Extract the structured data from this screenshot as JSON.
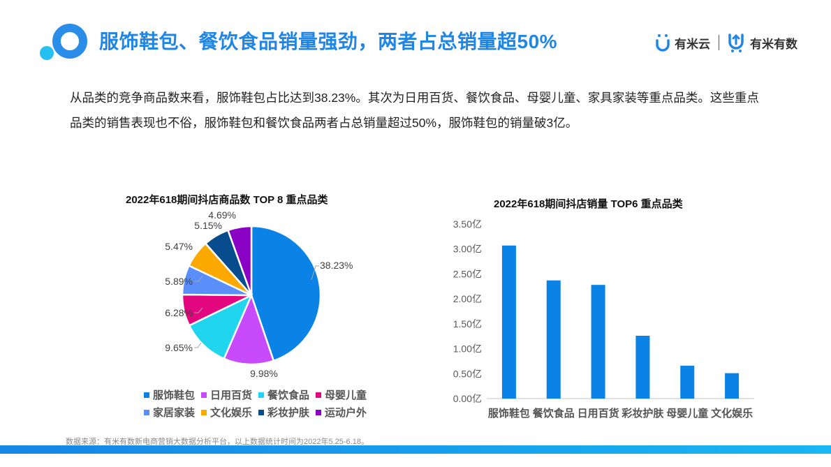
{
  "header": {
    "title": "服饰鞋包、餐饮食品销量强劲，两者占总销量超50%",
    "brand": {
      "logo1_text": "有米云",
      "logo2_text": "有米有数"
    },
    "accent_color": "#1f86e6"
  },
  "intro": {
    "text": "从品类的竞争商品数来看，服饰鞋包占比达到38.23%。其次为日用百货、餐饮食品、母婴儿童、家具家装等重点品类。这些重点品类的销售表现也不俗，服饰鞋包和餐饮食品两者占总销量超过50%，服饰鞋包的销量破3亿。"
  },
  "chart_data": [
    {
      "type": "pie",
      "title": "2022年618期间抖店商品数 TOP 8 重点品类",
      "categories": [
        "服饰鞋包",
        "日用百货",
        "餐饮食品",
        "母婴儿童",
        "家居家装",
        "文化娱乐",
        "彩妆护肤",
        "运动户外"
      ],
      "values": [
        38.23,
        9.98,
        9.65,
        6.28,
        5.89,
        5.47,
        5.15,
        4.69
      ],
      "labels": [
        "38.23%",
        "9.98%",
        "9.65%",
        "6.28%",
        "5.89%",
        "5.47%",
        "5.15%",
        "4.69%"
      ],
      "colors": [
        "#0a82e6",
        "#c84bfb",
        "#22d5ee",
        "#e2077f",
        "#5a8ffb",
        "#fba901",
        "#074c8c",
        "#8a03c4"
      ],
      "legend_position": "bottom"
    },
    {
      "type": "bar",
      "title": "2022年618期间抖店销量 TOP6 重点品类",
      "categories": [
        "服饰鞋包",
        "餐饮食品",
        "日用百货",
        "彩妆护肤",
        "母婴儿童",
        "文化娱乐"
      ],
      "values": [
        3.07,
        2.37,
        2.28,
        1.26,
        0.66,
        0.51
      ],
      "unit": "亿",
      "yticks": [
        "0.00亿",
        "0.50亿",
        "1.00亿",
        "1.50亿",
        "2.00亿",
        "2.50亿",
        "3.00亿",
        "3.50亿"
      ],
      "ylim": [
        0,
        3.5
      ],
      "xlabel": "",
      "ylabel": "",
      "grid": false,
      "color": "#0a82e6"
    }
  ],
  "footnote": "数据来源：有米有数新电商营销大数据分析平台，以上数据统计时间为2022年5.25-6.18。"
}
